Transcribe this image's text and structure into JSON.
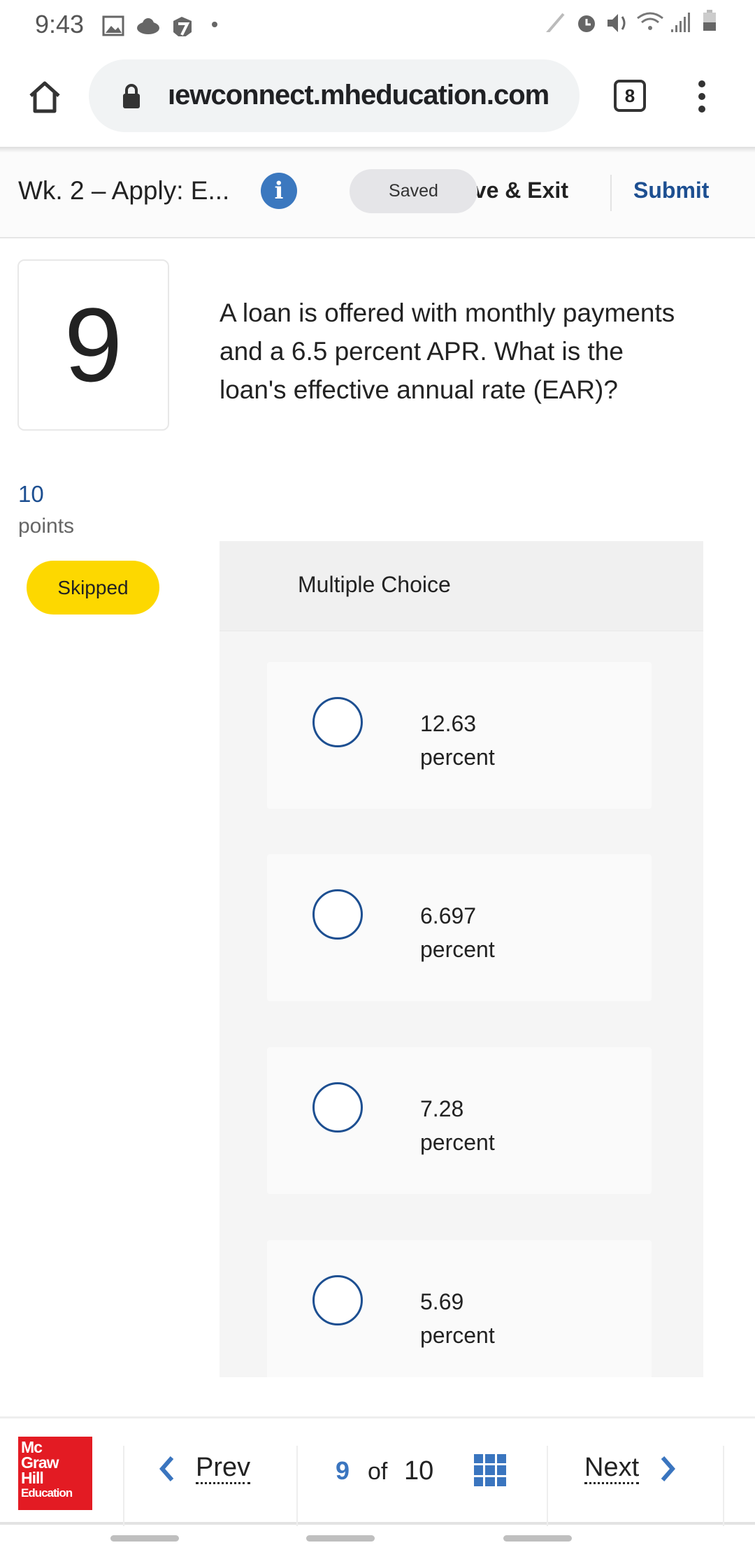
{
  "status_bar": {
    "time": "9:43",
    "icons": [
      "image-icon",
      "cloud-icon",
      "app-icon",
      "dot-icon",
      "pen-icon",
      "alarm-icon",
      "mute-icon",
      "wifi-icon",
      "signal-icon",
      "battery-icon"
    ]
  },
  "browser": {
    "url": "ıewconnect.mheducation.com",
    "tab_count": "8"
  },
  "header": {
    "title": "Wk. 2 – Apply: E...",
    "saved_label": "Saved",
    "save_exit_label": "ave & Exit",
    "submit_label": "Submit"
  },
  "question": {
    "number": "9",
    "text": "A loan is offered with monthly payments and a 6.5 percent APR. What is the loan's effective annual rate (EAR)?",
    "points": "10",
    "points_label": "points",
    "status": "Skipped",
    "status_color": "#fdd800",
    "type_label": "Multiple Choice",
    "options": [
      {
        "value": "12.63",
        "unit": "percent"
      },
      {
        "value": "6.697",
        "unit": "percent"
      },
      {
        "value": "7.28",
        "unit": "percent"
      },
      {
        "value": "5.69",
        "unit": "percent"
      }
    ]
  },
  "footer": {
    "logo_lines": [
      "Mc",
      "Graw",
      "Hill",
      "Education"
    ],
    "prev_label": "Prev",
    "current": "9",
    "of_label": "of",
    "total": "10",
    "next_label": "Next",
    "accent": "#3a75bf"
  }
}
